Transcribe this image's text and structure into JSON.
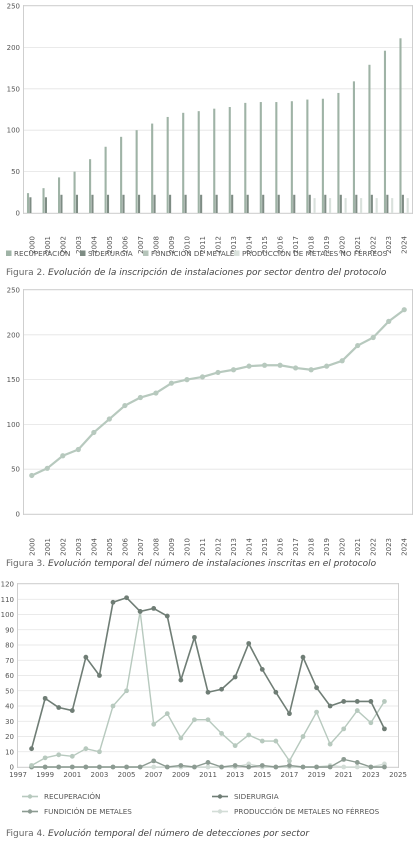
{
  "chart_data": [
    {
      "type": "bar",
      "caption_prefix": "Figura 2.",
      "caption_text": "Evolución de la inscripción de instalaciones por sector dentro del protocolo",
      "categories": [
        "2000",
        "2001",
        "2002",
        "2003",
        "2004",
        "2005",
        "2006",
        "2007",
        "2008",
        "2009",
        "2010",
        "2011",
        "2012",
        "2013",
        "2014",
        "2015",
        "2016",
        "2017",
        "2018",
        "2019",
        "2020",
        "2021",
        "2022",
        "2023",
        "2024"
      ],
      "ylim": [
        0,
        250
      ],
      "yticks": [
        0,
        50,
        100,
        150,
        200,
        250
      ],
      "grid": true,
      "legend": "bottom",
      "series": [
        {
          "name": "RECUPERACIÓN",
          "color": "#9fb3a6",
          "values": [
            24,
            30,
            43,
            50,
            65,
            80,
            92,
            100,
            108,
            116,
            121,
            123,
            126,
            128,
            133,
            134,
            134,
            135,
            137,
            138,
            145,
            159,
            179,
            196,
            211
          ]
        },
        {
          "name": "SIDERURGIA",
          "color": "#7e8c84",
          "values": [
            19,
            19,
            22,
            22,
            22,
            22,
            22,
            22,
            22,
            22,
            22,
            22,
            22,
            22,
            22,
            22,
            22,
            22,
            22,
            22,
            22,
            22,
            22,
            22,
            22
          ]
        },
        {
          "name": "FUNDICIÓN DE METALES",
          "color": "#b5c4ba",
          "values": [
            0,
            0,
            0,
            0,
            0,
            0,
            0,
            0,
            0,
            0,
            0,
            0,
            0,
            0,
            0,
            0,
            0,
            0,
            0,
            0,
            0,
            0,
            0,
            0,
            0
          ]
        },
        {
          "name": "PRODUCCIÓN DE METALES NO FÉRREOS",
          "color": "#d9e1dc",
          "values": [
            0,
            0,
            0,
            0,
            0,
            0,
            0,
            0,
            0,
            0,
            0,
            0,
            0,
            0,
            0,
            0,
            0,
            0,
            18,
            18,
            18,
            18,
            18,
            18,
            18
          ]
        }
      ]
    },
    {
      "type": "line",
      "caption_prefix": "Figura 3.",
      "caption_text": "Evolución temporal del número de instalaciones inscritas en el protocolo",
      "categories": [
        "2000",
        "2001",
        "2002",
        "2003",
        "2004",
        "2005",
        "2006",
        "2007",
        "2008",
        "2009",
        "2010",
        "2011",
        "2012",
        "2013",
        "2014",
        "2015",
        "2016",
        "2017",
        "2018",
        "2019",
        "2020",
        "2021",
        "2022",
        "2023",
        "2024"
      ],
      "ylim": [
        0,
        250
      ],
      "yticks": [
        0,
        50,
        100,
        150,
        200,
        250
      ],
      "grid": true,
      "series": [
        {
          "name": "",
          "color": "#b7c9be",
          "values": [
            43,
            51,
            65,
            72,
            91,
            106,
            121,
            130,
            135,
            146,
            150,
            153,
            158,
            161,
            165,
            166,
            166,
            163,
            161,
            165,
            171,
            188,
            197,
            215,
            228
          ]
        }
      ]
    },
    {
      "type": "line",
      "caption_prefix": "Figura 4.",
      "caption_text": "Evolución temporal del número de detecciones por sector",
      "x": [
        1998,
        1999,
        2000,
        2001,
        2002,
        2003,
        2004,
        2005,
        2006,
        2007,
        2008,
        2009,
        2010,
        2011,
        2012,
        2013,
        2014,
        2015,
        2016,
        2017,
        2018,
        2019,
        2020,
        2021,
        2022,
        2023,
        2024
      ],
      "xlim": [
        1997,
        2025
      ],
      "xticks": [
        1997,
        1999,
        2001,
        2003,
        2005,
        2007,
        2009,
        2011,
        2013,
        2015,
        2017,
        2019,
        2021,
        2023,
        2025
      ],
      "ylim": [
        0,
        120
      ],
      "yticks": [
        0,
        10,
        20,
        30,
        40,
        50,
        60,
        70,
        80,
        90,
        100,
        110,
        120
      ],
      "grid": true,
      "legend": "bottom",
      "series": [
        {
          "name": "RECUPERACIÓN",
          "color": "#b7c9be",
          "values": [
            1,
            6,
            8,
            7,
            12,
            10,
            40,
            50,
            102,
            28,
            35,
            19,
            31,
            31,
            22,
            14,
            21,
            17,
            17,
            4,
            20,
            36,
            15,
            25,
            37,
            29,
            43
          ]
        },
        {
          "name": "SIDERURGIA",
          "color": "#6f7d75",
          "values": [
            12,
            45,
            39,
            37,
            72,
            60,
            108,
            111,
            102,
            104,
            99,
            57,
            85,
            49,
            51,
            59,
            81,
            64,
            49,
            35,
            72,
            52,
            40,
            43,
            43,
            43,
            25
          ]
        },
        {
          "name": "FUNDICIÓN DE METALES",
          "color": "#8c9b92",
          "values": [
            0,
            0,
            0,
            0,
            0,
            0,
            0,
            0,
            0,
            4,
            0,
            1,
            0,
            3,
            0,
            1,
            0,
            1,
            0,
            1,
            0,
            0,
            0,
            5,
            3,
            0,
            0
          ]
        },
        {
          "name": "PRODUCCIÓN DE METALES NO FÉRREOS",
          "color": "#d3ddd7",
          "values": [
            0,
            0,
            0,
            0,
            0,
            0,
            0,
            0,
            0,
            0,
            0,
            0,
            0,
            0,
            0,
            0,
            2,
            0,
            0,
            0,
            0,
            0,
            1,
            0,
            0,
            0,
            2
          ]
        }
      ]
    }
  ]
}
